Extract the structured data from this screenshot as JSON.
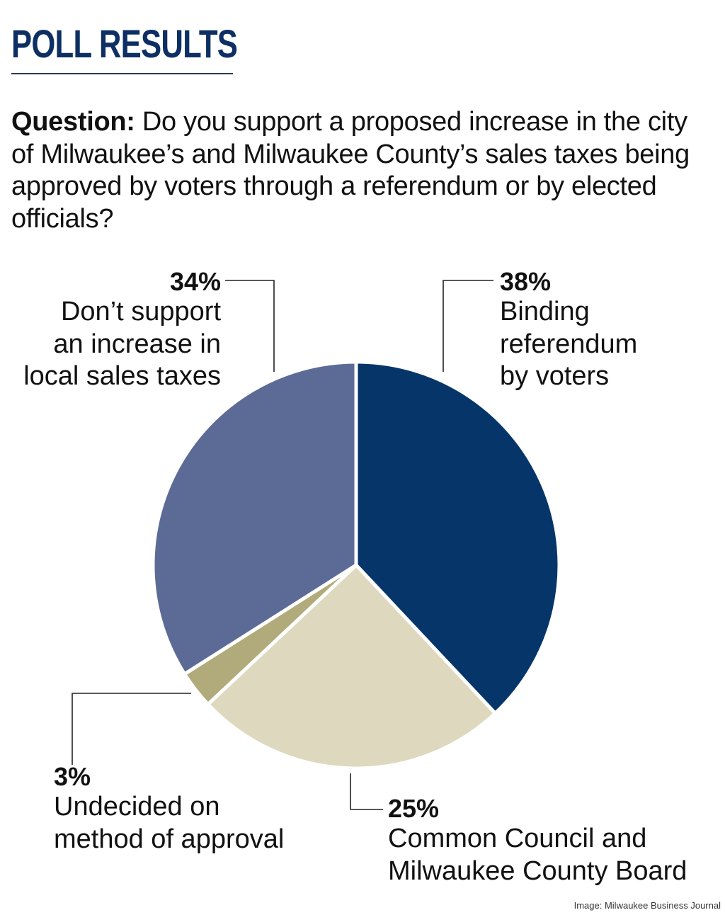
{
  "header": {
    "title": "POLL RESULTS",
    "question_label": "Question:",
    "question_text": "Do you support a proposed increase in the city of Milwaukee’s and Milwaukee County’s sales taxes being approved by voters through a referendum or by elected officials?"
  },
  "labels": {
    "binding": {
      "pct": "38%",
      "text": "Binding\nreferendum\nby voters"
    },
    "council": {
      "pct": "25%",
      "text": "Common Council and\nMilwaukee County Board"
    },
    "undecided": {
      "pct": "3%",
      "text": "Undecided on\nmethod of approval"
    },
    "dont_support": {
      "pct": "34%",
      "text": "Don’t support\nan increase in\nlocal sales taxes"
    }
  },
  "credit": "Image: Milwaukee Business Journal",
  "colors": {
    "binding": "#06356a",
    "council": "#ddd8be",
    "undecided": "#b1aa7a",
    "dont_support": "#5c6b96",
    "title": "#0d2f63"
  },
  "chart_data": {
    "type": "pie",
    "title": "POLL RESULTS",
    "subtitle": "Question: Do you support a proposed increase in the city of Milwaukee’s and Milwaukee County’s sales taxes being approved by voters through a referendum or by elected officials?",
    "categories": [
      "Binding referendum by voters",
      "Common Council and Milwaukee County Board",
      "Undecided on method of approval",
      "Don’t support an increase in local sales taxes"
    ],
    "values": [
      38,
      25,
      3,
      34
    ],
    "unit": "%",
    "start_angle": "12 o'clock, clockwise",
    "colors": [
      "#06356a",
      "#ddd8be",
      "#b1aa7a",
      "#5c6b96"
    ],
    "legend": "none (callout labels)",
    "source": "Image: Milwaukee Business Journal"
  }
}
